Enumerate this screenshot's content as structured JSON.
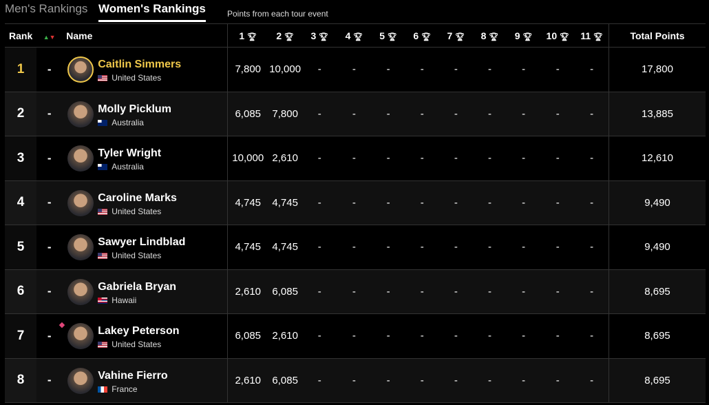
{
  "tabs": {
    "men": "Men's Rankings",
    "women": "Women's Rankings"
  },
  "subtitle": "Points from each tour event",
  "headers": {
    "rank": "Rank",
    "move": "▲▼",
    "name": "Name",
    "events": [
      "1",
      "2",
      "3",
      "4",
      "5",
      "6",
      "7",
      "8",
      "9",
      "10",
      "11"
    ],
    "total": "Total Points"
  },
  "rows": [
    {
      "rank": "1",
      "move": "-",
      "name": "Caitlin Simmers",
      "country": "United States",
      "flag": "us",
      "leader": true,
      "points": [
        "7,800",
        "10,000",
        "-",
        "-",
        "-",
        "-",
        "-",
        "-",
        "-",
        "-",
        "-"
      ],
      "total": "17,800"
    },
    {
      "rank": "2",
      "move": "-",
      "name": "Molly Picklum",
      "country": "Australia",
      "flag": "au",
      "points": [
        "6,085",
        "7,800",
        "-",
        "-",
        "-",
        "-",
        "-",
        "-",
        "-",
        "-",
        "-"
      ],
      "total": "13,885"
    },
    {
      "rank": "3",
      "move": "-",
      "name": "Tyler Wright",
      "country": "Australia",
      "flag": "au",
      "points": [
        "10,000",
        "2,610",
        "-",
        "-",
        "-",
        "-",
        "-",
        "-",
        "-",
        "-",
        "-"
      ],
      "total": "12,610"
    },
    {
      "rank": "4",
      "move": "-",
      "name": "Caroline Marks",
      "country": "United States",
      "flag": "us",
      "points": [
        "4,745",
        "4,745",
        "-",
        "-",
        "-",
        "-",
        "-",
        "-",
        "-",
        "-",
        "-"
      ],
      "total": "9,490"
    },
    {
      "rank": "5",
      "move": "-",
      "name": "Sawyer Lindblad",
      "country": "United States",
      "flag": "us",
      "points": [
        "4,745",
        "4,745",
        "-",
        "-",
        "-",
        "-",
        "-",
        "-",
        "-",
        "-",
        "-"
      ],
      "total": "9,490"
    },
    {
      "rank": "6",
      "move": "-",
      "name": "Gabriela Bryan",
      "country": "Hawaii",
      "flag": "hi",
      "points": [
        "2,610",
        "6,085",
        "-",
        "-",
        "-",
        "-",
        "-",
        "-",
        "-",
        "-",
        "-"
      ],
      "total": "8,695"
    },
    {
      "rank": "7",
      "move": "-",
      "name": "Lakey Peterson",
      "country": "United States",
      "flag": "us",
      "marker": true,
      "points": [
        "6,085",
        "2,610",
        "-",
        "-",
        "-",
        "-",
        "-",
        "-",
        "-",
        "-",
        "-"
      ],
      "total": "8,695"
    },
    {
      "rank": "8",
      "move": "-",
      "name": "Vahine Fierro",
      "country": "France",
      "flag": "fr",
      "points": [
        "2,610",
        "6,085",
        "-",
        "-",
        "-",
        "-",
        "-",
        "-",
        "-",
        "-",
        "-"
      ],
      "total": "8,695"
    }
  ],
  "colors": {
    "leader": "#f0c84a",
    "up": "#3bb34a",
    "down": "#dd3333",
    "marker": "#e0467a"
  }
}
